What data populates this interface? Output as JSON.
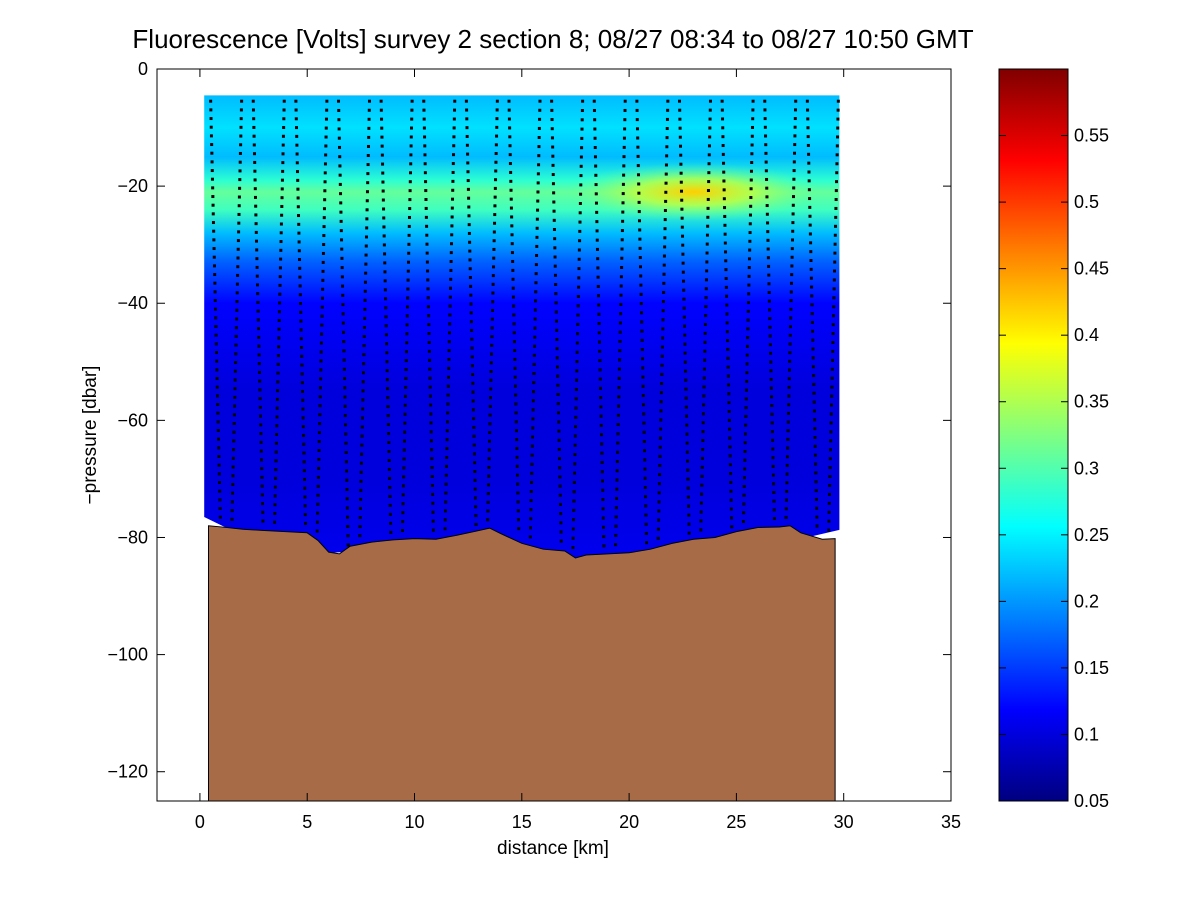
{
  "chart_data": [
    {
      "type": "heatmap",
      "title": "Fluorescence [Volts] survey 2 section 8; 08/27 08:34 to 08/27 10:50 GMT",
      "xlabel": "distance [km]",
      "ylabel": "−pressure [dbar]",
      "xlim": [
        -2,
        35
      ],
      "ylim": [
        -125,
        0
      ],
      "x_ticks": [
        0,
        5,
        10,
        15,
        20,
        25,
        30,
        35
      ],
      "y_ticks": [
        0,
        -20,
        -40,
        -60,
        -80,
        -100,
        -120
      ],
      "y_tick_labels": [
        "0",
        "−20",
        "−40",
        "−60",
        "−80",
        "−100",
        "−120"
      ],
      "grid": false,
      "colormap": "jet",
      "field_x_range": [
        0.2,
        29.8
      ],
      "field_top": -4.5,
      "chlorophyll_max": {
        "depth": -21,
        "center_x": 23,
        "peak_value": 0.42
      },
      "seabed_color": "#a86b47",
      "seabed_x_range": [
        0.4,
        29.6
      ],
      "seabed": {
        "x": [
          0.4,
          1,
          2,
          3,
          4,
          5,
          5.5,
          6,
          6.5,
          7,
          8,
          9,
          10,
          11,
          12,
          13,
          13.5,
          14,
          15,
          16,
          17,
          17.5,
          18,
          19,
          20,
          21,
          22,
          23,
          24,
          25,
          26,
          27,
          27.5,
          28,
          29,
          29.6
        ],
        "y": [
          -78,
          -78.2,
          -78.6,
          -78.8,
          -79,
          -79.2,
          -80.5,
          -82.5,
          -82.8,
          -81.5,
          -80.8,
          -80.4,
          -80.2,
          -80.3,
          -79.6,
          -78.8,
          -78.4,
          -79.3,
          -81,
          -82,
          -82.3,
          -83.5,
          -83,
          -82.8,
          -82.6,
          -82,
          -81,
          -80.3,
          -80,
          -79,
          -78.3,
          -78.2,
          -78,
          -79.2,
          -80.3,
          -80.2
        ]
      },
      "profiles": {
        "count": 30,
        "x_start": 0.5,
        "x_end": 29.3,
        "top": -5.5,
        "bottom_margin": 1.5
      }
    },
    {
      "type": "colorbar",
      "colormap": "jet",
      "range": [
        0.05,
        0.6
      ],
      "ticks": [
        0.05,
        0.1,
        0.15,
        0.2,
        0.25,
        0.3,
        0.35,
        0.4,
        0.45,
        0.5,
        0.55
      ],
      "tick_labels": [
        "0.05",
        "0.1",
        "0.15",
        "0.2",
        "0.25",
        "0.3",
        "0.35",
        "0.4",
        "0.45",
        "0.5",
        "0.55"
      ]
    }
  ]
}
